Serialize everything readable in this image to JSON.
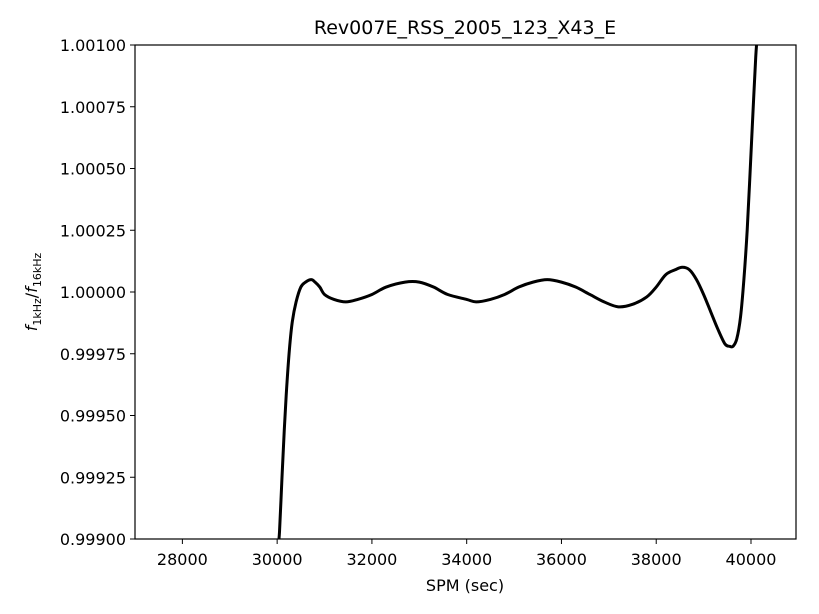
{
  "chart_data": {
    "type": "line",
    "title": "Rev007E_RSS_2005_123_X43_E",
    "xlabel": "SPM (sec)",
    "ylabel": {
      "base": "f",
      "sub1": "1kHz",
      "slash": "/",
      "sub2": "16kHz"
    },
    "xlim": [
      27000,
      40950
    ],
    "ylim": [
      0.999,
      1.001
    ],
    "grid": false,
    "x_ticks": [
      28000,
      30000,
      32000,
      34000,
      36000,
      38000,
      40000
    ],
    "x_tick_labels": [
      "28000",
      "30000",
      "32000",
      "34000",
      "36000",
      "38000",
      "40000"
    ],
    "y_ticks": [
      0.999,
      0.99925,
      0.9995,
      0.99975,
      1.0,
      1.00025,
      1.0005,
      1.00075,
      1.001
    ],
    "y_tick_labels": [
      "0.99900",
      "0.99925",
      "0.99950",
      "0.99975",
      "1.00000",
      "1.00025",
      "1.00050",
      "1.00075",
      "1.00100"
    ],
    "series": [
      {
        "color": "#000000",
        "points": [
          [
            30020,
            0.99897
          ],
          [
            30050,
            0.99903
          ],
          [
            30100,
            0.99924
          ],
          [
            30150,
            0.99944
          ],
          [
            30200,
            0.99961
          ],
          [
            30260,
            0.99977
          ],
          [
            30320,
            0.99988
          ],
          [
            30400,
            0.99996
          ],
          [
            30500,
            1.00002
          ],
          [
            30600,
            1.00004
          ],
          [
            30720,
            1.00005
          ],
          [
            30800,
            1.00004
          ],
          [
            30900,
            1.00002
          ],
          [
            31000,
            0.99999
          ],
          [
            31200,
            0.99997
          ],
          [
            31450,
            0.99996
          ],
          [
            31700,
            0.99997
          ],
          [
            32000,
            0.99999
          ],
          [
            32300,
            1.00002
          ],
          [
            32700,
            1.00004
          ],
          [
            33000,
            1.00004
          ],
          [
            33300,
            1.00002
          ],
          [
            33600,
            0.99999
          ],
          [
            34000,
            0.99997
          ],
          [
            34200,
            0.99996
          ],
          [
            34500,
            0.99997
          ],
          [
            34800,
            0.99999
          ],
          [
            35100,
            1.00002
          ],
          [
            35400,
            1.00004
          ],
          [
            35700,
            1.00005
          ],
          [
            36000,
            1.00004
          ],
          [
            36300,
            1.00002
          ],
          [
            36600,
            0.99999
          ],
          [
            36900,
            0.99996
          ],
          [
            37200,
            0.99994
          ],
          [
            37500,
            0.99995
          ],
          [
            37800,
            0.99998
          ],
          [
            38000,
            1.00002
          ],
          [
            38200,
            1.00007
          ],
          [
            38400,
            1.00009
          ],
          [
            38550,
            1.0001
          ],
          [
            38700,
            1.00009
          ],
          [
            38850,
            1.00005
          ],
          [
            39000,
            0.99999
          ],
          [
            39150,
            0.99992
          ],
          [
            39300,
            0.99985
          ],
          [
            39450,
            0.99979
          ],
          [
            39550,
            0.99978
          ],
          [
            39620,
            0.99978
          ],
          [
            39700,
            0.99981
          ],
          [
            39780,
            0.9999
          ],
          [
            39850,
            1.00005
          ],
          [
            39920,
            1.00025
          ],
          [
            39980,
            1.00048
          ],
          [
            40040,
            1.00072
          ],
          [
            40100,
            1.00095
          ],
          [
            40130,
            1.00103
          ]
        ]
      }
    ]
  }
}
